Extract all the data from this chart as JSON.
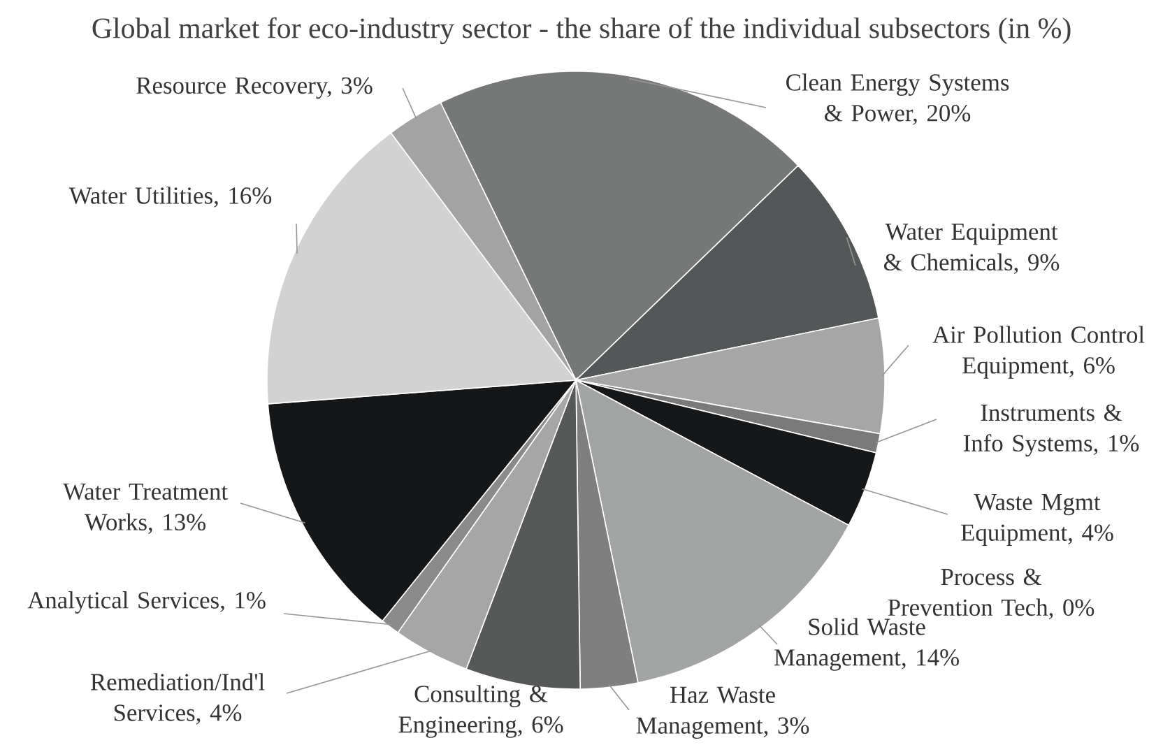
{
  "chart_data": {
    "type": "pie",
    "title": "Global market for eco-industry sector - the share of the individual subsectors (in %)",
    "categories": [
      "Clean Energy Systems & Power, 20%",
      "Water Equipment & Chemicals, 9%",
      "Air Pollution Control Equipment, 6%",
      "Instruments & Info Systems, 1%",
      "Waste Mgmt Equipment, 4%",
      "Process & Prevention Tech, 0%",
      "Solid Waste Management, 14%",
      "Haz Waste Management, 3%",
      "Consulting & Engineering, 6%",
      "Remediation/Ind'l Services, 4%",
      "Analytical Services, 1%",
      "Water Treatment Works, 13%",
      "Water Utilities, 16%",
      "Resource Recovery, 3%"
    ],
    "values": [
      20,
      9,
      6,
      1,
      4,
      0,
      14,
      3,
      6,
      4,
      1,
      13,
      16,
      3
    ],
    "colors": [
      "#767878",
      "#545757",
      "#a6a6a6",
      "#7a7a7a",
      "#161719",
      "#909090",
      "#a2a4a4",
      "#7f7f7f",
      "#575959",
      "#a6a6a6",
      "#8a8a8a",
      "#151618",
      "#d2d2d2",
      "#a3a3a3"
    ]
  }
}
